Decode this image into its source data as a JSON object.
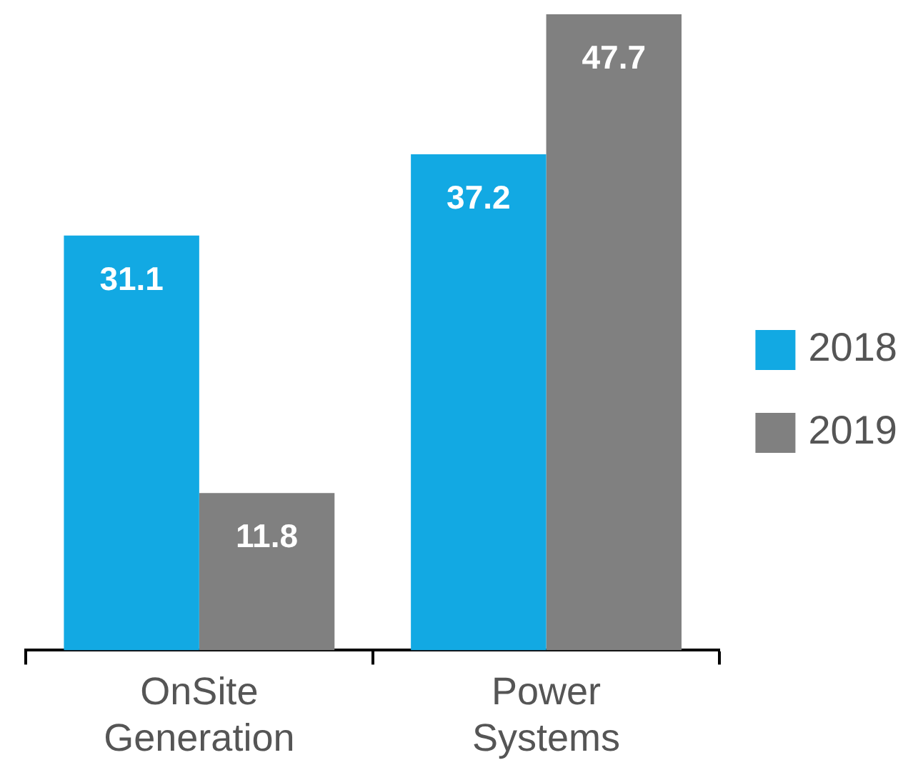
{
  "chart_data": {
    "type": "bar",
    "categories": [
      "OnSite Generation",
      "Power Systems"
    ],
    "series": [
      {
        "name": "2018",
        "color": "#12a9e3",
        "values": [
          31.1,
          37.2
        ]
      },
      {
        "name": "2019",
        "color": "#808080",
        "values": [
          11.8,
          47.7
        ]
      }
    ],
    "data_labels": true,
    "legend": "right",
    "grid": false,
    "tick_labels": "x"
  }
}
